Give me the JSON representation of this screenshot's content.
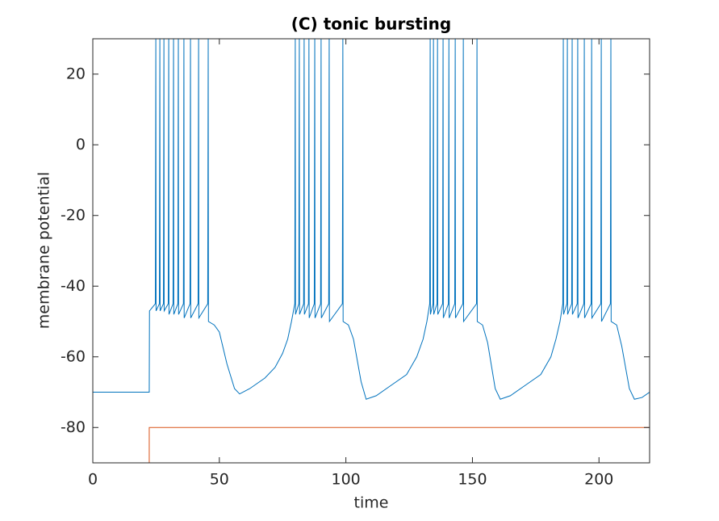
{
  "chart_data": {
    "type": "line",
    "title": "(C) tonic bursting",
    "xlabel": "time",
    "ylabel": "membrane potential",
    "xlim": [
      0,
      220
    ],
    "xticks": [
      0,
      50,
      100,
      150,
      200
    ],
    "ylim": [
      -90,
      30
    ],
    "yticks": [
      -80,
      -60,
      -40,
      -20,
      0,
      20
    ],
    "grid": false,
    "series": [
      {
        "color": "#0072bd",
        "x": [
          0,
          22.3,
          22.4,
          24.7,
          24.9,
          25.0,
          26.3,
          26.5,
          26.6,
          27.9,
          28.1,
          28.2,
          29.8,
          30.0,
          30.1,
          31.7,
          31.9,
          32.0,
          33.6,
          33.8,
          33.9,
          35.8,
          36.0,
          36.1,
          38.4,
          38.6,
          38.7,
          41.6,
          41.8,
          41.9,
          45.4,
          45.6,
          45.7,
          48,
          50,
          53,
          56,
          58,
          62,
          68,
          72,
          75,
          77,
          78.5,
          79.8,
          80,
          80.1,
          81.4,
          81.6,
          81.7,
          83.3,
          83.5,
          83.6,
          85.2,
          85.4,
          85.5,
          87.5,
          87.7,
          87.8,
          90.0,
          90.2,
          90.3,
          93.2,
          93.4,
          93.5,
          98.6,
          98.8,
          98.9,
          101,
          103,
          106,
          108,
          112,
          118,
          124,
          128,
          130.5,
          132,
          133.1,
          133.3,
          133.4,
          134.4,
          134.6,
          134.7,
          136.0,
          136.2,
          136.3,
          138.2,
          138.4,
          138.5,
          140.5,
          140.7,
          140.8,
          143.0,
          143.2,
          143.3,
          146.2,
          146.4,
          146.5,
          151.6,
          151.8,
          151.9,
          154,
          156,
          159,
          161,
          165,
          171,
          177,
          181,
          183,
          184.6,
          185.7,
          185.9,
          186.0,
          187.3,
          187.5,
          187.6,
          189.2,
          189.4,
          189.5,
          191.4,
          191.6,
          191.7,
          194.0,
          194.2,
          194.3,
          196.9,
          197.1,
          197.2,
          200.7,
          200.9,
          201.0,
          204.5,
          204.7,
          204.8,
          207,
          209,
          212,
          214,
          217,
          220
        ],
        "values": [
          -70,
          -70,
          -47,
          -45,
          30,
          -47,
          -45,
          30,
          -47,
          -45,
          30,
          -47,
          -45,
          30,
          -48,
          -45,
          30,
          -48,
          -45,
          30,
          -48,
          -45,
          30,
          -49,
          -45,
          30,
          -49,
          -45,
          30,
          -49,
          -45,
          30,
          -50,
          -51,
          -53,
          -62,
          -69,
          -70.5,
          -69,
          -66,
          -63,
          -59,
          -55,
          -50,
          -45,
          30,
          -48,
          -45,
          30,
          -48,
          -45,
          30,
          -48,
          -45,
          30,
          -49,
          -45,
          30,
          -49,
          -45,
          30,
          -49,
          -45,
          30,
          -50,
          -45,
          30,
          -50,
          -51,
          -55,
          -67,
          -72,
          -71,
          -68,
          -65,
          -60,
          -55,
          -50,
          -45,
          30,
          -48,
          -45,
          30,
          -48,
          -45,
          30,
          -48,
          -45,
          30,
          -49,
          -45,
          30,
          -49,
          -45,
          30,
          -49,
          -45,
          30,
          -50,
          -45,
          30,
          -50,
          -51,
          -56,
          -69,
          -72,
          -71,
          -68,
          -65,
          -60,
          -55,
          -50,
          -45,
          30,
          -48,
          -45,
          30,
          -48,
          -45,
          30,
          -48,
          -45,
          30,
          -49,
          -45,
          30,
          -49,
          -45,
          30,
          -49,
          -45,
          30,
          -50,
          -45,
          30,
          -50,
          -51,
          -57,
          -69,
          -72,
          -71.5,
          -70
        ]
      },
      {
        "color": "#d95319",
        "x": [
          0,
          22.3,
          22.3,
          220
        ],
        "values": [
          -90,
          -90,
          -80,
          -80
        ]
      }
    ]
  }
}
